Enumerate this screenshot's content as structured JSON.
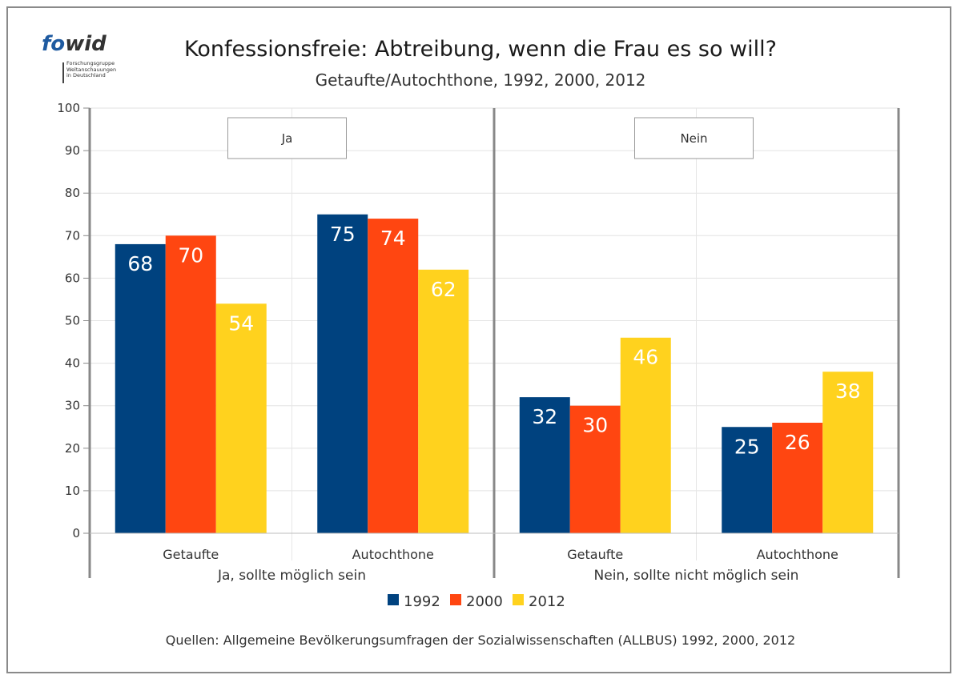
{
  "logo": {
    "text_fo": "fo",
    "text_wid": "wid",
    "subtitle_lines": "Forschungsgruppe\nWeltanschauungen\nin Deutschland"
  },
  "title": "Konfessionsfreie: Abtreibung, wenn die Frau es so will?",
  "subtitle": "Getaufte/Autochthone, 1992, 2000, 2012",
  "source": "Quellen: Allgemeine Bevölkerungsumfragen der Sozialwissenschaften (ALLBUS) 1992, 2000, 2012",
  "colors": {
    "1992": "#00427f",
    "2000": "#ff4611",
    "2012": "#ffd21e"
  },
  "chart_data": {
    "type": "bar",
    "ylim": [
      0,
      100
    ],
    "yticks": [
      0,
      10,
      20,
      30,
      40,
      50,
      60,
      70,
      80,
      90,
      100
    ],
    "grid": true,
    "legend_placement": "bottom",
    "panels": [
      {
        "label": "Ja",
        "group_label": "Ja, sollte möglich sein",
        "categories": [
          "Getaufte",
          "Autochthone"
        ],
        "series": [
          {
            "name": "1992",
            "values": [
              68,
              75
            ]
          },
          {
            "name": "2000",
            "values": [
              70,
              74
            ]
          },
          {
            "name": "2012",
            "values": [
              54,
              62
            ]
          }
        ]
      },
      {
        "label": "Nein",
        "group_label": "Nein, sollte nicht möglich sein",
        "categories": [
          "Getaufte",
          "Autochthone"
        ],
        "series": [
          {
            "name": "1992",
            "values": [
              32,
              25
            ]
          },
          {
            "name": "2000",
            "values": [
              30,
              26
            ]
          },
          {
            "name": "2012",
            "values": [
              46,
              38
            ]
          }
        ]
      }
    ]
  }
}
